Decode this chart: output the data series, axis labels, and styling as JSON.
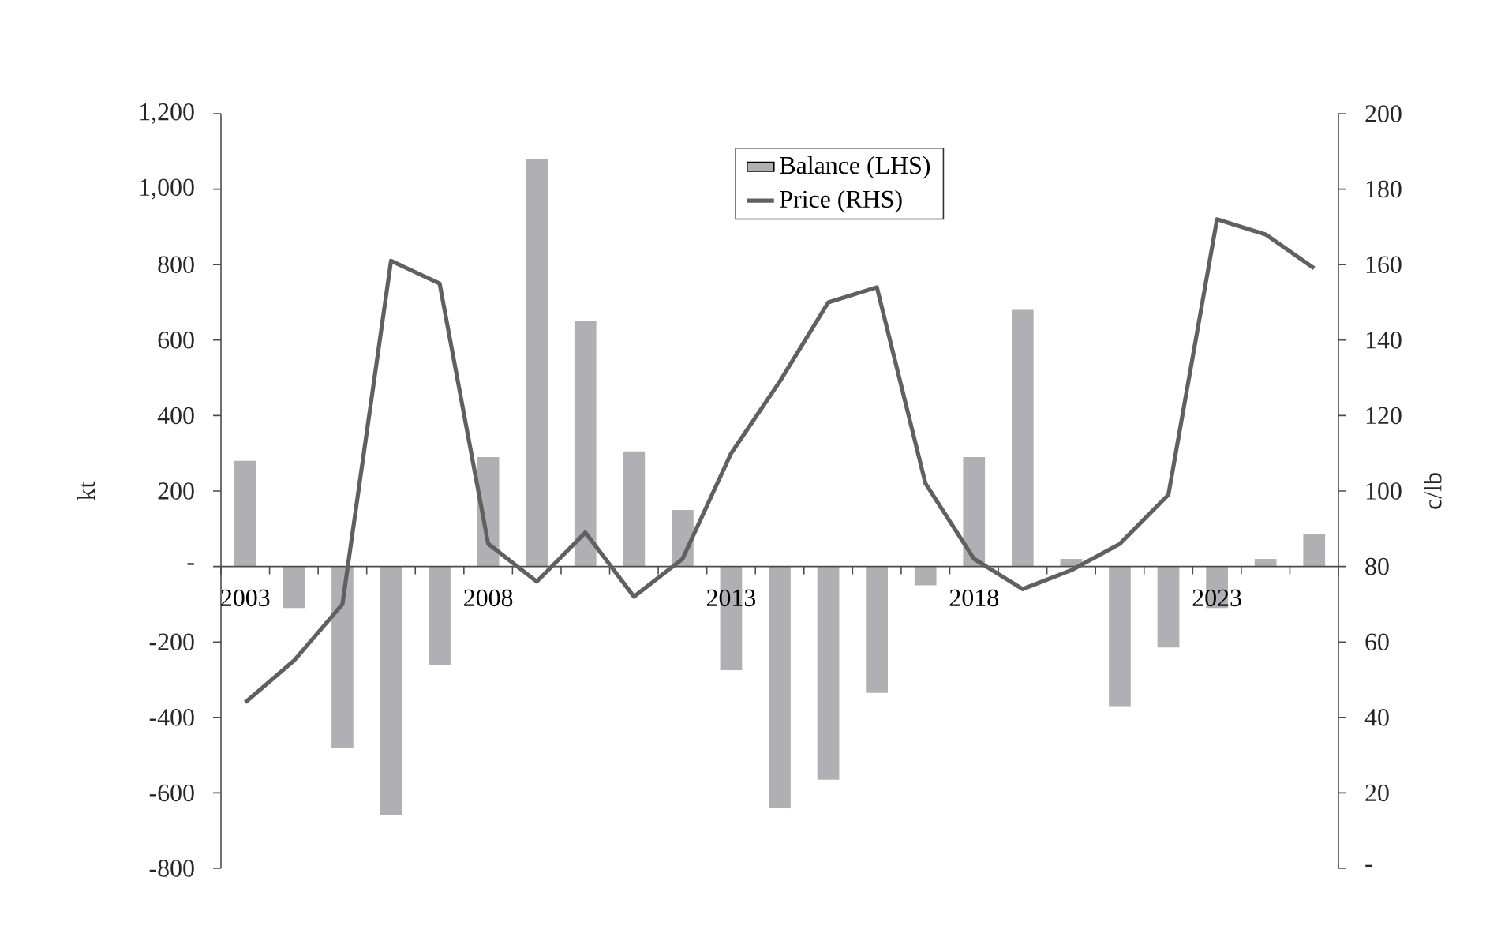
{
  "chart_data": {
    "type": "bar",
    "ylabel": "kt",
    "y2label": "c/lb",
    "categories": [
      "2003",
      null,
      null,
      null,
      null,
      "2008",
      null,
      null,
      null,
      null,
      "2013",
      null,
      null,
      null,
      null,
      "2018",
      null,
      null,
      null,
      null,
      "2023",
      null,
      null
    ],
    "series": [
      {
        "name": "Balance (LHS)",
        "color": "#b0b0b4",
        "values": [
          280,
          -110,
          -480,
          -660,
          -260,
          290,
          1080,
          650,
          305,
          150,
          -275,
          -640,
          -565,
          -335,
          -50,
          290,
          680,
          20,
          -370,
          -215,
          -110,
          20,
          85
        ]
      },
      {
        "name": "Price (RHS)",
        "type": "line",
        "axis": "y2",
        "color": "#606060",
        "values": [
          44,
          55,
          70,
          161,
          155,
          86,
          76,
          89,
          72,
          82,
          110,
          129,
          150,
          154,
          102,
          82,
          74,
          79,
          86,
          99,
          172,
          168,
          159
        ]
      }
    ],
    "ylim": [
      -800,
      1200
    ],
    "yticks": [
      -800,
      -600,
      -400,
      -200,
      {
        "value": 0,
        "label": "-"
      },
      200,
      400,
      600,
      800,
      {
        "value": 1000,
        "label": "1,000"
      },
      {
        "value": 1200,
        "label": "1,200"
      }
    ],
    "y2lim": [
      0,
      200
    ],
    "y2ticks": [
      {
        "value": 0,
        "label": "-"
      },
      20,
      40,
      60,
      80,
      100,
      120,
      140,
      160,
      180,
      200
    ],
    "legend": "top",
    "marker": "none",
    "line_style": "solid"
  }
}
